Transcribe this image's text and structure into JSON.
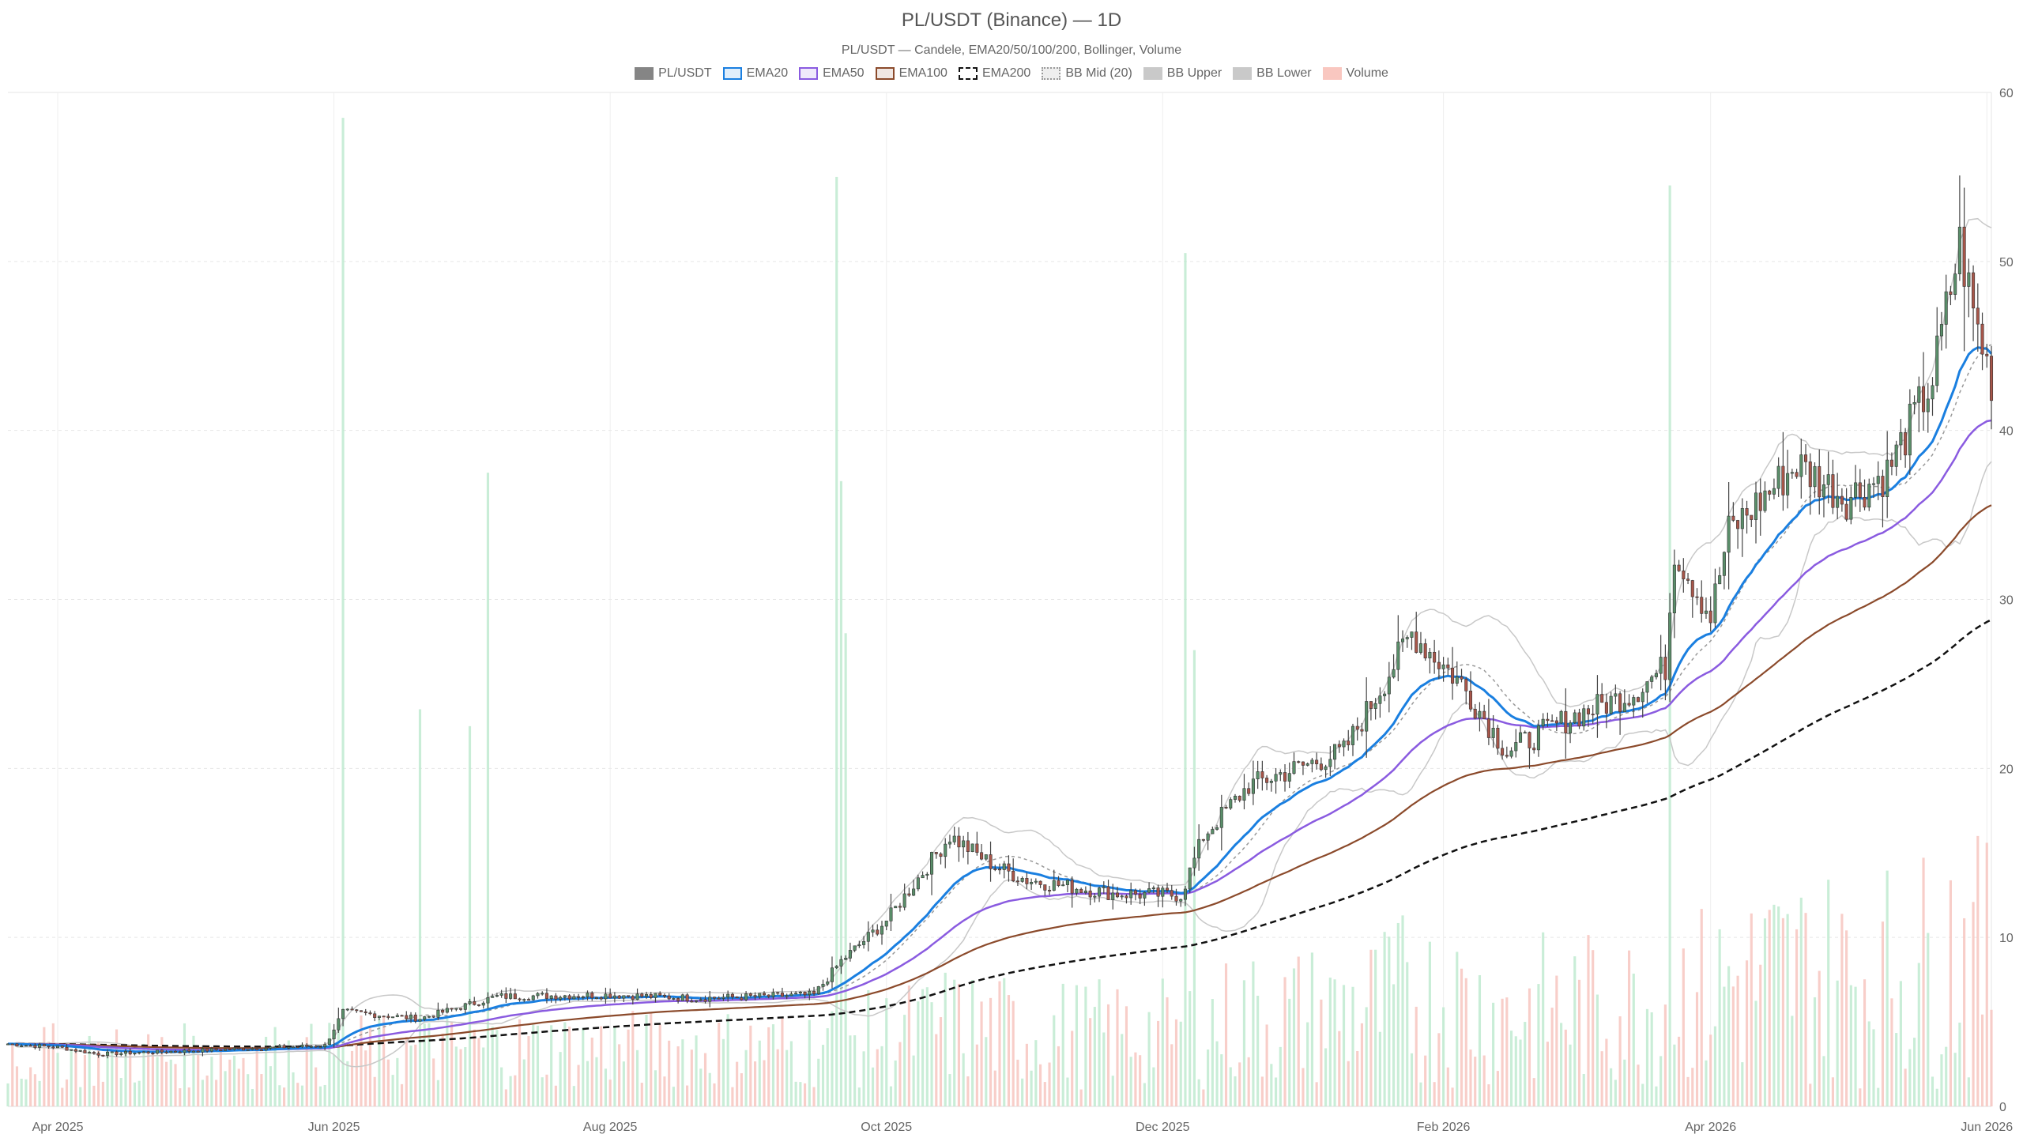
{
  "chart_data": {
    "type": "candlestick",
    "title": "PL/USDT (Binance) — 1D",
    "subtitle": "PL/USDT — Candele, EMA20/50/100/200, Bollinger, Volume",
    "ylim": [
      0,
      60
    ],
    "y_ticks": [
      "0",
      "10",
      "20",
      "30",
      "40",
      "50",
      "60"
    ],
    "x_ticks": [
      "Apr 2025",
      "Jun 2025",
      "Aug 2025",
      "Oct 2025",
      "Dec 2025",
      "Feb 2026",
      "Apr 2026",
      "Jun 2026"
    ],
    "x_range": [
      "2025-03-21",
      "2026-06-02"
    ],
    "grid": true,
    "legend_position": "top",
    "legend": [
      {
        "label": "PL/USDT",
        "color": "#666666",
        "style": "fill"
      },
      {
        "label": "EMA20",
        "color": "#1a7fe0",
        "style": "line"
      },
      {
        "label": "EMA50",
        "color": "#8a5be0",
        "style": "line"
      },
      {
        "label": "EMA100",
        "color": "#8b4a2b",
        "style": "line"
      },
      {
        "label": "EMA200",
        "color": "#111111",
        "style": "dash"
      },
      {
        "label": "BB Mid (20)",
        "color": "#999999",
        "style": "dot"
      },
      {
        "label": "BB Upper",
        "color": "#bbbbbb",
        "style": "fill"
      },
      {
        "label": "BB Lower",
        "color": "#bbbbbb",
        "style": "fill"
      },
      {
        "label": "Volume",
        "color": "#f7b9b0",
        "style": "fill"
      }
    ],
    "price_keyframes": [
      [
        "2025-03-21",
        3.7
      ],
      [
        "2025-04-01",
        3.5
      ],
      [
        "2025-04-10",
        3.1
      ],
      [
        "2025-05-01",
        3.3
      ],
      [
        "2025-05-30",
        3.6
      ],
      [
        "2025-06-03",
        5.6
      ],
      [
        "2025-06-20",
        5.2
      ],
      [
        "2025-07-07",
        6.5
      ],
      [
        "2025-08-01",
        6.6
      ],
      [
        "2025-08-20",
        6.4
      ],
      [
        "2025-09-15",
        6.6
      ],
      [
        "2025-09-21",
        8.6
      ],
      [
        "2025-10-01",
        11.0
      ],
      [
        "2025-10-15",
        16.0
      ],
      [
        "2025-10-25",
        14.2
      ],
      [
        "2025-11-01",
        13.4
      ],
      [
        "2025-11-20",
        12.6
      ],
      [
        "2025-12-05",
        12.5
      ],
      [
        "2025-12-10",
        16.0
      ],
      [
        "2025-12-20",
        19.0
      ],
      [
        "2026-01-10",
        21.0
      ],
      [
        "2026-01-25",
        28.0
      ],
      [
        "2026-02-05",
        25.0
      ],
      [
        "2026-02-15",
        21.0
      ],
      [
        "2026-03-01",
        23.0
      ],
      [
        "2026-03-15",
        24.5
      ],
      [
        "2026-03-22",
        26.0
      ],
      [
        "2026-03-24",
        33.0
      ],
      [
        "2026-04-01",
        29.0
      ],
      [
        "2026-04-05",
        34.0
      ],
      [
        "2026-04-20",
        38.0
      ],
      [
        "2026-05-01",
        36.0
      ],
      [
        "2026-05-10",
        37.5
      ],
      [
        "2026-05-20",
        43.0
      ],
      [
        "2026-05-26",
        51.0
      ],
      [
        "2026-05-29",
        47.0
      ],
      [
        "2026-06-02",
        43.0
      ]
    ],
    "volume_spikes": [
      [
        "2025-06-03",
        58.5
      ],
      [
        "2025-07-05",
        37.5
      ],
      [
        "2025-06-20",
        23.5
      ],
      [
        "2025-07-01",
        22.5
      ],
      [
        "2025-09-20",
        55.0
      ],
      [
        "2025-09-21",
        37.0
      ],
      [
        "2025-09-22",
        28.0
      ],
      [
        "2025-12-06",
        50.5
      ],
      [
        "2025-12-08",
        27.0
      ],
      [
        "2026-03-23",
        54.5
      ]
    ]
  }
}
